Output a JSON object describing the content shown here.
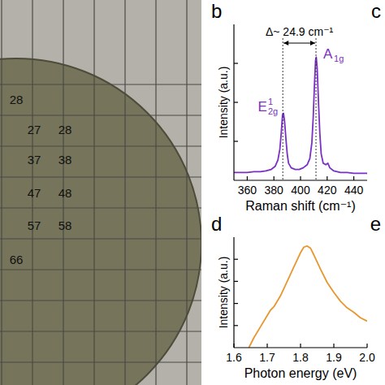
{
  "figure": {
    "panel_labels": [
      "c",
      "e"
    ]
  },
  "photo": {
    "rows": [
      [
        "28"
      ],
      [
        "27",
        "28"
      ],
      [
        "37",
        "38"
      ],
      [
        "47",
        "48"
      ],
      [
        "57",
        "58"
      ],
      [
        "66"
      ]
    ]
  },
  "chart_data": [
    {
      "type": "line",
      "panel": "b",
      "x_label": "Raman shift (cm⁻¹)",
      "y_label": "Intensity (a.u.)",
      "x": [
        350,
        355,
        360,
        365,
        370,
        374,
        378,
        381,
        383,
        384.5,
        385.5,
        386.5,
        387.2,
        388,
        389,
        390,
        391,
        393,
        396,
        399,
        402,
        405,
        407,
        408.5,
        409.5,
        410.5,
        411.3,
        411.8,
        412.5,
        413.5,
        414.5,
        415.5,
        417,
        419,
        420.5,
        422,
        425,
        430,
        435,
        440,
        445,
        450
      ],
      "values": [
        0.05,
        0.05,
        0.05,
        0.055,
        0.055,
        0.06,
        0.07,
        0.09,
        0.13,
        0.2,
        0.3,
        0.42,
        0.43,
        0.38,
        0.27,
        0.17,
        0.11,
        0.08,
        0.07,
        0.07,
        0.08,
        0.1,
        0.14,
        0.24,
        0.4,
        0.62,
        0.77,
        0.79,
        0.72,
        0.5,
        0.3,
        0.17,
        0.11,
        0.1,
        0.11,
        0.08,
        0.06,
        0.05,
        0.05,
        0.045,
        0.045,
        0.045
      ],
      "color": "#7b2fc4",
      "xlim": [
        350,
        450
      ],
      "xticks": [
        360,
        380,
        400,
        420,
        440
      ],
      "ylim": [
        0,
        1
      ],
      "yticks": [
        0.25,
        0.5,
        0.75
      ],
      "tick_labels": "x",
      "delta": {
        "x1": 386.7,
        "x2": 411.6,
        "text": "Δ~ 24.9 cm⁻¹"
      },
      "peak_labels": [
        {
          "text": "E",
          "sup": "1",
          "sub": "2g"
        },
        {
          "text": "A",
          "sub": "1g"
        }
      ]
    },
    {
      "type": "line",
      "panel": "d",
      "x_label": "Photon energy (eV)",
      "y_label": "Intensity (a.u.)",
      "x": [
        1.645,
        1.66,
        1.68,
        1.7,
        1.71,
        1.72,
        1.74,
        1.76,
        1.78,
        1.8,
        1.81,
        1.82,
        1.83,
        1.84,
        1.86,
        1.88,
        1.9,
        1.92,
        1.94,
        1.96,
        1.98,
        2.0
      ],
      "values": [
        0.0,
        0.09,
        0.19,
        0.29,
        0.34,
        0.37,
        0.47,
        0.6,
        0.73,
        0.86,
        0.91,
        0.92,
        0.9,
        0.84,
        0.71,
        0.59,
        0.5,
        0.42,
        0.36,
        0.32,
        0.27,
        0.24
      ],
      "color": "#e8962e",
      "xlim": [
        1.6,
        2.0
      ],
      "xticks": [
        1.6,
        1.7,
        1.8,
        1.9,
        {
          "value": 2.0,
          "label": "2.0"
        }
      ],
      "ylim": [
        0,
        1
      ],
      "yticks": [
        0.2,
        0.4,
        0.6,
        0.8
      ],
      "tick_labels": "x"
    }
  ]
}
